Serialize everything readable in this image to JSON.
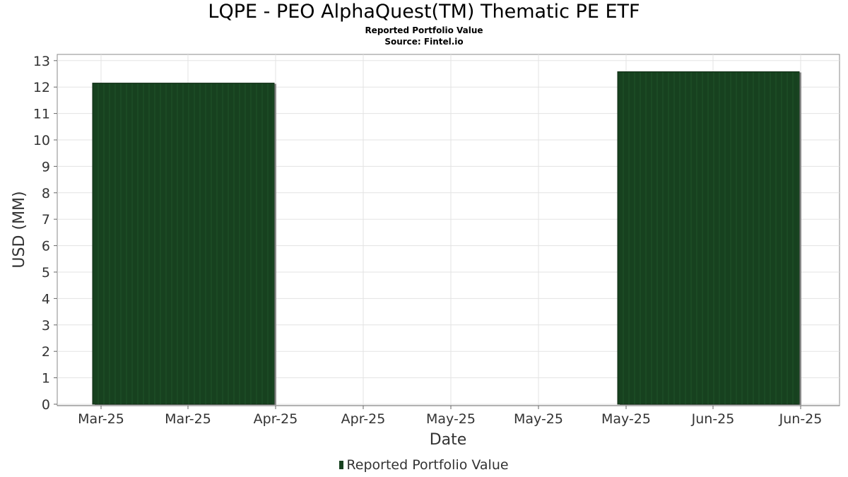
{
  "title": "LQPE - PEO AlphaQuest(TM) Thematic PE ETF",
  "subtitle": "Reported Portfolio Value",
  "source": "Source: Fintel.io",
  "chart_data": {
    "type": "bar",
    "title": "LQPE - PEO AlphaQuest(TM) Thematic PE ETF",
    "subtitle": "Reported Portfolio Value",
    "xlabel": "Date",
    "ylabel": "USD (MM)",
    "ylim": [
      0,
      13.2
    ],
    "yticks": [
      0,
      1,
      2,
      3,
      4,
      5,
      6,
      7,
      8,
      9,
      10,
      11,
      12,
      13
    ],
    "xticks": [
      "Mar-25",
      "Mar-25",
      "Apr-25",
      "Apr-25",
      "May-25",
      "May-25",
      "May-25",
      "Jun-25",
      "Jun-25"
    ],
    "grid": true,
    "legend_position": "bottom",
    "series": [
      {
        "name": "Reported Portfolio Value",
        "color": "#17411f",
        "bars": [
          {
            "x_start": "Mar-25",
            "x_end": "Apr-25",
            "value": 12.15
          },
          {
            "x_start": "May-25",
            "x_end": "Jun-25",
            "value": 12.58
          }
        ]
      }
    ]
  }
}
